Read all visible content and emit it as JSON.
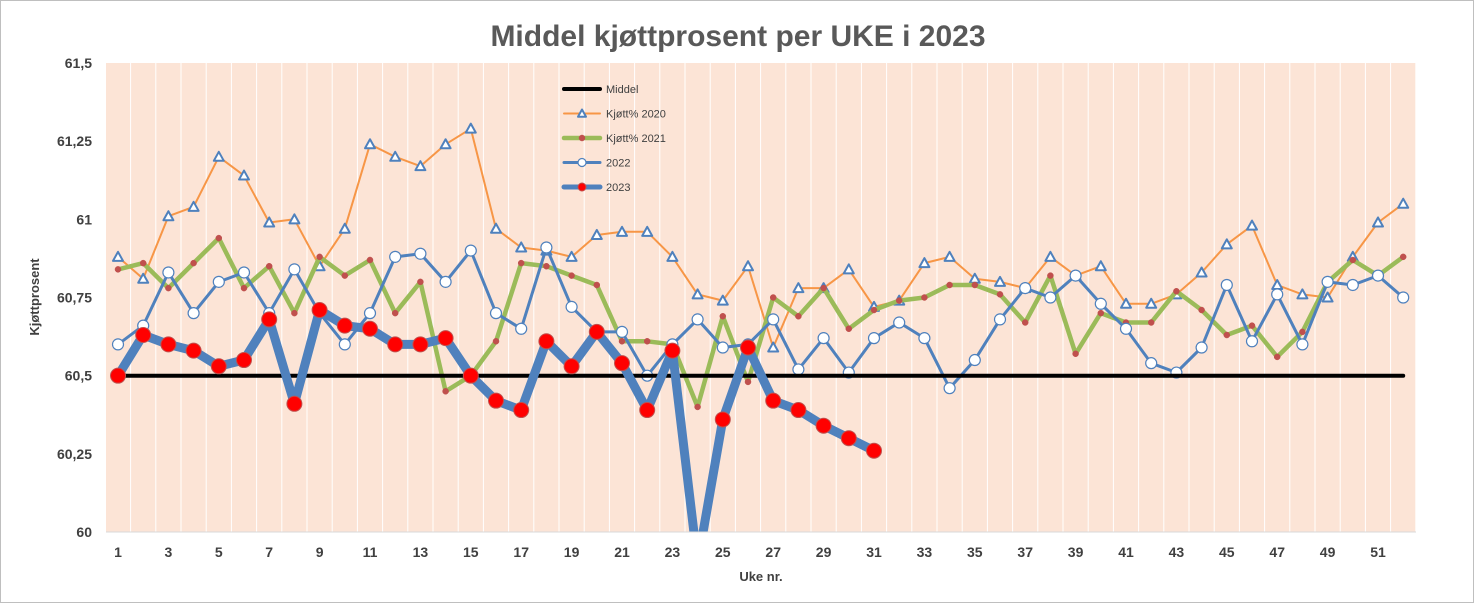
{
  "chart_data": {
    "type": "line",
    "title": "Middel kjøttprosent per UKE i 2023",
    "xlabel": "Uke nr.",
    "ylabel": "Kjøttprosent",
    "ylim": [
      60,
      61.5
    ],
    "xlim": [
      1,
      52
    ],
    "y_ticks": [
      "60",
      "60,25",
      "60,5",
      "60,75",
      "61",
      "61,25",
      "61,5"
    ],
    "y_tick_values": [
      60,
      60.25,
      60.5,
      60.75,
      61,
      61.25,
      61.5
    ],
    "x_tick_labels": [
      "1",
      "3",
      "5",
      "7",
      "9",
      "11",
      "13",
      "15",
      "17",
      "19",
      "21",
      "23",
      "25",
      "27",
      "29",
      "31",
      "33",
      "35",
      "37",
      "39",
      "41",
      "43",
      "45",
      "47",
      "49",
      "51"
    ],
    "x_tick_values": [
      1,
      3,
      5,
      7,
      9,
      11,
      13,
      15,
      17,
      19,
      21,
      23,
      25,
      27,
      29,
      31,
      33,
      35,
      37,
      39,
      41,
      43,
      45,
      47,
      49,
      51
    ],
    "grid": "vertical",
    "legend_position": "top-center",
    "colors": {
      "plot_background": "#fce4d6",
      "grid": "#ffffff",
      "middel": "#000000",
      "y2020": "#f79646",
      "y2020_marker": "#4f81bd",
      "y2021": "#9bbb59",
      "y2021_marker": "#c0504d",
      "y2022": "#4f81bd",
      "y2023": "#4f81bd",
      "y2023_marker": "#ff0000"
    },
    "series": [
      {
        "name": "Middel",
        "x": [
          1,
          52
        ],
        "values": [
          60.5,
          60.5
        ]
      },
      {
        "name": "Kjøtt% 2020",
        "x": [
          1,
          2,
          3,
          4,
          5,
          6,
          7,
          8,
          9,
          10,
          11,
          12,
          13,
          14,
          15,
          16,
          17,
          18,
          19,
          20,
          21,
          22,
          23,
          24,
          25,
          26,
          27,
          28,
          29,
          30,
          31,
          32,
          33,
          34,
          35,
          36,
          37,
          38,
          39,
          40,
          41,
          42,
          43,
          44,
          45,
          46,
          47,
          48,
          49,
          50,
          51,
          52
        ],
        "values": [
          60.88,
          60.81,
          61.01,
          61.04,
          61.2,
          61.14,
          60.99,
          61.0,
          60.85,
          60.97,
          61.24,
          61.2,
          61.17,
          61.24,
          61.29,
          60.97,
          60.91,
          60.9,
          60.88,
          60.95,
          60.96,
          60.96,
          60.88,
          60.76,
          60.74,
          60.85,
          60.59,
          60.78,
          60.78,
          60.84,
          60.72,
          60.74,
          60.86,
          60.88,
          60.81,
          60.8,
          60.78,
          60.88,
          60.82,
          60.85,
          60.73,
          60.73,
          60.76,
          60.83,
          60.92,
          60.98,
          60.79,
          60.76,
          60.75,
          60.88,
          60.99,
          61.05
        ]
      },
      {
        "name": "Kjøtt% 2021",
        "x": [
          1,
          2,
          3,
          4,
          5,
          6,
          7,
          8,
          9,
          10,
          11,
          12,
          13,
          14,
          15,
          16,
          17,
          18,
          19,
          20,
          21,
          22,
          23,
          24,
          25,
          26,
          27,
          28,
          29,
          30,
          31,
          32,
          33,
          34,
          35,
          36,
          37,
          38,
          39,
          40,
          41,
          42,
          43,
          44,
          45,
          46,
          47,
          48,
          49,
          50,
          51,
          52
        ],
        "values": [
          60.84,
          60.86,
          60.78,
          60.86,
          60.94,
          60.78,
          60.85,
          60.7,
          60.88,
          60.82,
          60.87,
          60.7,
          60.8,
          60.45,
          60.5,
          60.61,
          60.86,
          60.85,
          60.82,
          60.79,
          60.61,
          60.61,
          60.6,
          60.4,
          60.69,
          60.48,
          60.75,
          60.69,
          60.78,
          60.65,
          60.71,
          60.74,
          60.75,
          60.79,
          60.79,
          60.76,
          60.67,
          60.82,
          60.57,
          60.7,
          60.67,
          60.67,
          60.77,
          60.71,
          60.63,
          60.66,
          60.56,
          60.64,
          60.8,
          60.87,
          60.82,
          60.88
        ]
      },
      {
        "name": "2022",
        "x": [
          1,
          2,
          3,
          4,
          5,
          6,
          7,
          8,
          9,
          10,
          11,
          12,
          13,
          14,
          15,
          16,
          17,
          18,
          19,
          20,
          21,
          22,
          23,
          24,
          25,
          26,
          27,
          28,
          29,
          30,
          31,
          32,
          33,
          34,
          35,
          36,
          37,
          38,
          39,
          40,
          41,
          42,
          43,
          44,
          45,
          46,
          47,
          48,
          49,
          50,
          51,
          52
        ],
        "values": [
          60.6,
          60.66,
          60.83,
          60.7,
          60.8,
          60.83,
          60.7,
          60.84,
          60.7,
          60.6,
          60.7,
          60.88,
          60.89,
          60.8,
          60.9,
          60.7,
          60.65,
          60.91,
          60.72,
          60.64,
          60.64,
          60.5,
          60.6,
          60.68,
          60.59,
          60.6,
          60.68,
          60.52,
          60.62,
          60.51,
          60.62,
          60.67,
          60.62,
          60.46,
          60.55,
          60.68,
          60.78,
          60.75,
          60.82,
          60.73,
          60.65,
          60.54,
          60.51,
          60.59,
          60.79,
          60.61,
          60.76,
          60.6,
          60.8,
          60.79,
          60.82,
          60.75
        ]
      },
      {
        "name": "2023",
        "x": [
          1,
          2,
          3,
          4,
          5,
          6,
          7,
          8,
          9,
          10,
          11,
          12,
          13,
          14,
          15,
          16,
          17,
          18,
          19,
          20,
          21,
          22,
          23,
          24,
          25,
          26,
          27,
          28,
          29,
          30,
          31
        ],
        "values": [
          60.5,
          60.63,
          60.6,
          60.58,
          60.53,
          60.55,
          60.68,
          60.41,
          60.71,
          60.66,
          60.65,
          60.6,
          60.6,
          60.62,
          60.5,
          60.42,
          60.39,
          60.61,
          60.53,
          60.64,
          60.54,
          60.39,
          60.58,
          59.9,
          60.36,
          60.59,
          60.42,
          60.39,
          60.34,
          60.3,
          60.26
        ]
      }
    ]
  }
}
